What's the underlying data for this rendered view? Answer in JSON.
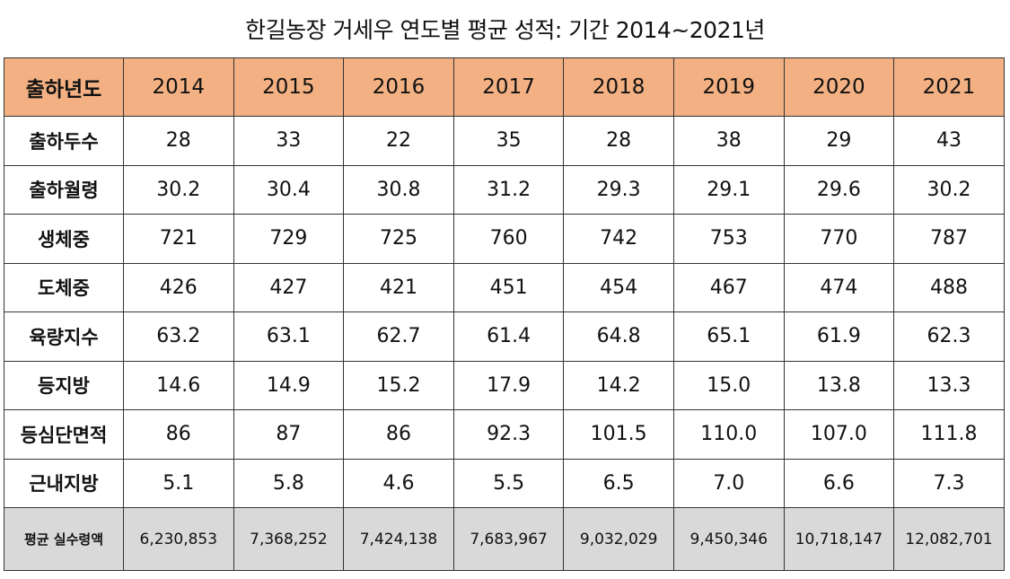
{
  "title": "한길농장 거세우 연도별 평균 성적: 기간 2014~2021년",
  "colors": {
    "header_bg": "#f3b183",
    "footer_bg": "#d9d9d9",
    "border": "#333333"
  },
  "table": {
    "header_label": "출하년도",
    "years": [
      "2014",
      "2015",
      "2016",
      "2017",
      "2018",
      "2019",
      "2020",
      "2021"
    ],
    "rows": [
      {
        "label": "출하두수",
        "values": [
          "28",
          "33",
          "22",
          "35",
          "28",
          "38",
          "29",
          "43"
        ]
      },
      {
        "label": "출하월령",
        "values": [
          "30.2",
          "30.4",
          "30.8",
          "31.2",
          "29.3",
          "29.1",
          "29.6",
          "30.2"
        ]
      },
      {
        "label": "생체중",
        "values": [
          "721",
          "729",
          "725",
          "760",
          "742",
          "753",
          "770",
          "787"
        ]
      },
      {
        "label": "도체중",
        "values": [
          "426",
          "427",
          "421",
          "451",
          "454",
          "467",
          "474",
          "488"
        ]
      },
      {
        "label": "육량지수",
        "values": [
          "63.2",
          "63.1",
          "62.7",
          "61.4",
          "64.8",
          "65.1",
          "61.9",
          "62.3"
        ]
      },
      {
        "label": "등지방",
        "values": [
          "14.6",
          "14.9",
          "15.2",
          "17.9",
          "14.2",
          "15.0",
          "13.8",
          "13.3"
        ]
      },
      {
        "label": "등심단면적",
        "values": [
          "86",
          "87",
          "86",
          "92.3",
          "101.5",
          "110.0",
          "107.0",
          "111.8"
        ]
      },
      {
        "label": "근내지방",
        "values": [
          "5.1",
          "5.8",
          "4.6",
          "5.5",
          "6.5",
          "7.0",
          "6.6",
          "7.3"
        ]
      }
    ],
    "footer": {
      "label": "평균 실수령액",
      "values": [
        "6,230,853",
        "7,368,252",
        "7,424,138",
        "7,683,967",
        "9,032,029",
        "9,450,346",
        "10,718,147",
        "12,082,701"
      ]
    }
  }
}
